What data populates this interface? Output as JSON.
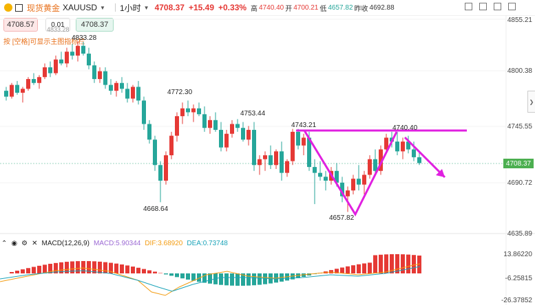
{
  "header": {
    "title": "现货黄金",
    "symbol": "XAUUSD",
    "interval": "1小时",
    "price": "4708.37",
    "change": "+15.49",
    "change_pct": "+0.33%",
    "high_label": "高",
    "high": "4740.40",
    "open_label": "开",
    "open": "4700.21",
    "low_label": "低",
    "low": "4657.82",
    "prev_label": "昨收",
    "prev": "4692.88"
  },
  "trade": {
    "sell": "4708.57",
    "qty": "0.01",
    "qty_sub": "4833.28",
    "buy": "4708.37"
  },
  "hint": "按 [空格]可显示主图指标栏",
  "price_axis": [
    "4855.21",
    "4800.38",
    "4745.55",
    "4690.72",
    "4635.89"
  ],
  "current_price": "4708.37",
  "macd_axis": [
    "13.86220",
    "-6.25815",
    "-26.37852"
  ],
  "annotations": {
    "a1": "4833.28",
    "a2": "4772.30",
    "a3": "4753.44",
    "a4": "4743.21",
    "a5": "4740.40",
    "a6": "4668.64",
    "a7": "4657.82"
  },
  "macd": {
    "title": "MACD(12,26,9)",
    "macd": "MACD:5.90344",
    "dif": "DIF:3.68920",
    "dea": "DEA:0.73748"
  },
  "colors": {
    "up": "#e53935",
    "down": "#26a69a",
    "annotation": "#e020e0",
    "dif": "#f39c12",
    "dea": "#1aa3b8"
  },
  "candles": [
    [
      4782,
      4786,
      4772,
      4776
    ],
    [
      4776,
      4790,
      4774,
      4788
    ],
    [
      4788,
      4792,
      4778,
      4780
    ],
    [
      4780,
      4786,
      4770,
      4784
    ],
    [
      4784,
      4796,
      4782,
      4794
    ],
    [
      4794,
      4800,
      4788,
      4790
    ],
    [
      4790,
      4798,
      4784,
      4796
    ],
    [
      4796,
      4810,
      4794,
      4806
    ],
    [
      4806,
      4812,
      4796,
      4800
    ],
    [
      4800,
      4818,
      4798,
      4814
    ],
    [
      4814,
      4822,
      4808,
      4810
    ],
    [
      4810,
      4826,
      4806,
      4822
    ],
    [
      4822,
      4830,
      4814,
      4818
    ],
    [
      4818,
      4833,
      4812,
      4828
    ],
    [
      4828,
      4832,
      4818,
      4820
    ],
    [
      4820,
      4826,
      4804,
      4808
    ],
    [
      4808,
      4812,
      4790,
      4794
    ],
    [
      4794,
      4806,
      4790,
      4802
    ],
    [
      4802,
      4806,
      4784,
      4788
    ],
    [
      4788,
      4794,
      4778,
      4782
    ],
    [
      4782,
      4792,
      4776,
      4790
    ],
    [
      4790,
      4796,
      4780,
      4784
    ],
    [
      4784,
      4790,
      4770,
      4774
    ],
    [
      4774,
      4788,
      4770,
      4786
    ],
    [
      4786,
      4792,
      4768,
      4772
    ],
    [
      4772,
      4776,
      4742,
      4748
    ],
    [
      4748,
      4752,
      4728,
      4732
    ],
    [
      4732,
      4736,
      4700,
      4706
    ],
    [
      4706,
      4710,
      4668,
      4690
    ],
    [
      4690,
      4720,
      4686,
      4716
    ],
    [
      4716,
      4740,
      4712,
      4736
    ],
    [
      4736,
      4760,
      4730,
      4756
    ],
    [
      4756,
      4770,
      4748,
      4764
    ],
    [
      4764,
      4772,
      4756,
      4760
    ],
    [
      4760,
      4768,
      4750,
      4764
    ],
    [
      4764,
      4770,
      4756,
      4758
    ],
    [
      4758,
      4766,
      4740,
      4744
    ],
    [
      4744,
      4756,
      4738,
      4752
    ],
    [
      4752,
      4760,
      4740,
      4742
    ],
    [
      4742,
      4750,
      4720,
      4724
    ],
    [
      4724,
      4742,
      4720,
      4738
    ],
    [
      4738,
      4752,
      4734,
      4748
    ],
    [
      4748,
      4753,
      4740,
      4744
    ],
    [
      4744,
      4750,
      4730,
      4732
    ],
    [
      4732,
      4746,
      4726,
      4742
    ],
    [
      4742,
      4750,
      4700,
      4706
    ],
    [
      4706,
      4716,
      4696,
      4712
    ],
    [
      4712,
      4720,
      4700,
      4716
    ],
    [
      4716,
      4726,
      4702,
      4706
    ],
    [
      4706,
      4722,
      4702,
      4720
    ],
    [
      4720,
      4730,
      4690,
      4698
    ],
    [
      4698,
      4712,
      4694,
      4710
    ],
    [
      4710,
      4743,
      4706,
      4740
    ],
    [
      4740,
      4743,
      4722,
      4726
    ],
    [
      4726,
      4738,
      4716,
      4734
    ],
    [
      4734,
      4740,
      4700,
      4704
    ],
    [
      4704,
      4712,
      4666,
      4698
    ],
    [
      4698,
      4710,
      4690,
      4694
    ],
    [
      4694,
      4700,
      4680,
      4690
    ],
    [
      4690,
      4704,
      4686,
      4700
    ],
    [
      4700,
      4708,
      4684,
      4688
    ],
    [
      4688,
      4694,
      4668,
      4674
    ],
    [
      4674,
      4684,
      4658,
      4680
    ],
    [
      4680,
      4696,
      4676,
      4692
    ],
    [
      4692,
      4706,
      4680,
      4686
    ],
    [
      4686,
      4700,
      4676,
      4696
    ],
    [
      4696,
      4716,
      4692,
      4712
    ],
    [
      4712,
      4722,
      4696,
      4700
    ],
    [
      4700,
      4726,
      4696,
      4722
    ],
    [
      4722,
      4738,
      4718,
      4734
    ],
    [
      4734,
      4740,
      4724,
      4730
    ],
    [
      4730,
      4740,
      4716,
      4720
    ],
    [
      4720,
      4734,
      4712,
      4730
    ],
    [
      4730,
      4736,
      4718,
      4722
    ],
    [
      4722,
      4730,
      4710,
      4714
    ],
    [
      4714,
      4720,
      4706,
      4708
    ]
  ]
}
